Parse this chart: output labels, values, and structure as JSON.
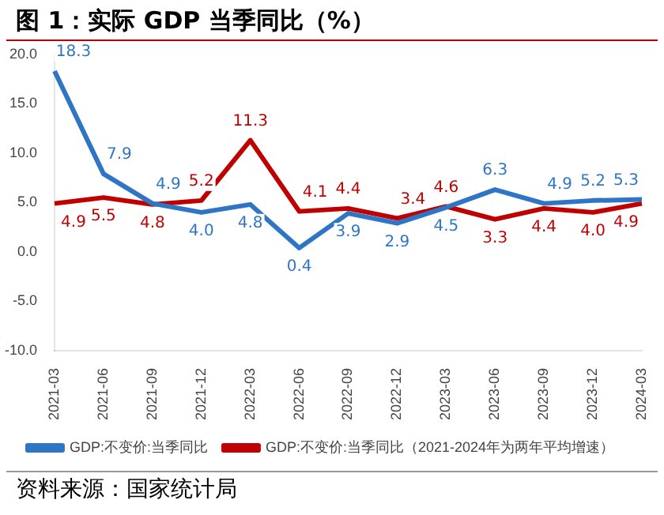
{
  "chart_data": {
    "type": "line",
    "title": "图 1：实际 GDP 当季同比（%）",
    "categories": [
      "2021-03",
      "2021-06",
      "2021-09",
      "2021-12",
      "2022-03",
      "2022-06",
      "2022-09",
      "2022-12",
      "2023-03",
      "2023-06",
      "2023-09",
      "2023-12",
      "2024-03"
    ],
    "series": [
      {
        "name": "GDP:不变价:当季同比",
        "color": "#2e75c6",
        "values": [
          18.3,
          7.9,
          4.9,
          4.0,
          4.8,
          0.4,
          3.9,
          2.9,
          4.5,
          6.3,
          4.9,
          5.2,
          5.3
        ],
        "value_labels": [
          "18.3",
          "7.9",
          "4.9",
          "4.0",
          "4.8",
          "0.4",
          "3.9",
          "2.9",
          "4.5",
          "6.3",
          "4.9",
          "5.2",
          "5.3"
        ]
      },
      {
        "name": "GDP:不变价:当季同比（2021-2024年为两年平均增速）",
        "color": "#c00000",
        "values": [
          4.9,
          5.5,
          4.8,
          5.2,
          11.3,
          4.1,
          4.4,
          3.4,
          4.6,
          3.3,
          4.4,
          4.0,
          4.9
        ],
        "value_labels": [
          "4.9",
          "5.5",
          "4.8",
          "5.2",
          "11.3",
          "4.1",
          "4.4",
          "3.4",
          "4.6",
          "3.3",
          "4.4",
          "4.0",
          "4.9"
        ]
      }
    ],
    "ylim": [
      -10,
      20
    ],
    "yticks": [
      {
        "value": -10,
        "label": "-10.0"
      },
      {
        "value": -5,
        "label": "-5.0"
      },
      {
        "value": 0,
        "label": "0.0"
      },
      {
        "value": 5,
        "label": "5.0"
      },
      {
        "value": 10,
        "label": "10.0"
      },
      {
        "value": 15,
        "label": "15.0"
      },
      {
        "value": 20,
        "label": "20.0"
      }
    ],
    "grid": false,
    "legend": "bottom",
    "marker": "none",
    "line_style": "solid",
    "annotations": [
      "资料来源：国家统计局"
    ]
  }
}
